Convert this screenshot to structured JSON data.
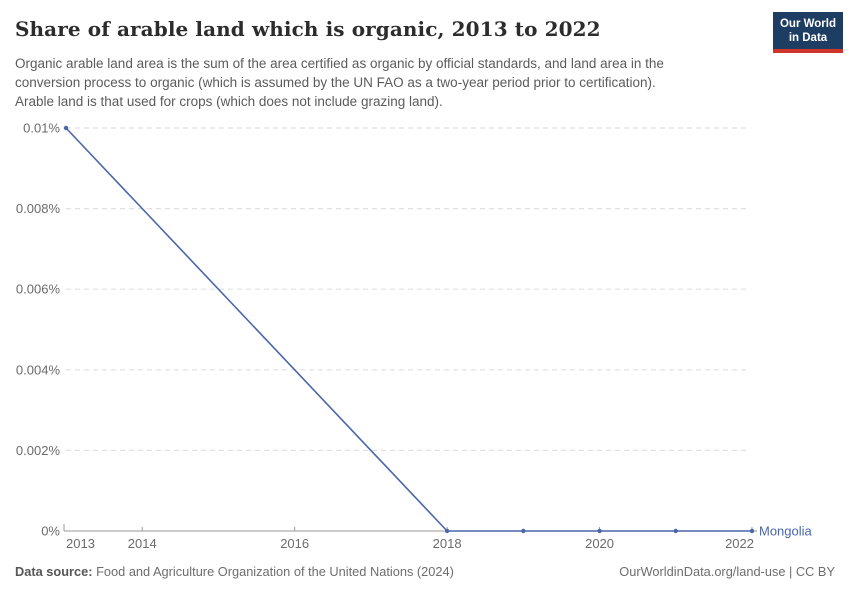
{
  "header": {
    "title": "Share of arable land which is organic, 2013 to 2022",
    "subtitle_lines": [
      "Organic arable land area is the sum of the area certified as organic by official standards, and land area in the",
      "conversion process to organic (which is assumed by the UN FAO as a two-year period prior to certification).",
      "Arable land is that used for crops (which does not include grazing land)."
    ],
    "logo": {
      "line1": "Our World",
      "line2": "in Data",
      "bg_color": "#1d3d63",
      "stripe_color": "#d0352c"
    }
  },
  "chart_data": {
    "type": "line",
    "title": "Share of arable land which is organic, 2013 to 2022",
    "xlabel": "",
    "ylabel": "",
    "xlim": [
      2013,
      2022
    ],
    "ylim": [
      0,
      0.01
    ],
    "xticks": [
      2013,
      2014,
      2016,
      2018,
      2020,
      2022
    ],
    "yticks": [
      {
        "value": 0,
        "label": "0%"
      },
      {
        "value": 0.002,
        "label": "0.002%"
      },
      {
        "value": 0.004,
        "label": "0.004%"
      },
      {
        "value": 0.006,
        "label": "0.006%"
      },
      {
        "value": 0.008,
        "label": "0.008%"
      },
      {
        "value": 0.01,
        "label": "0.01%"
      }
    ],
    "grid": "horizontal-dashed",
    "legend": "entity-label-at-line-end",
    "series": [
      {
        "name": "Mongolia",
        "color": "#4a67a8",
        "points": [
          {
            "x": 2013,
            "y": 0.01
          },
          {
            "x": 2018,
            "y": 0
          },
          {
            "x": 2019,
            "y": 0
          },
          {
            "x": 2020,
            "y": 0
          },
          {
            "x": 2021,
            "y": 0
          },
          {
            "x": 2022,
            "y": 0
          }
        ]
      }
    ],
    "colors": {
      "grid": "#e0e0e0",
      "axis": "#9a9a9a",
      "tick_text": "#6b6b6b"
    }
  },
  "footer": {
    "source_label": "Data source:",
    "source_text": "Food and Agriculture Organization of the United Nations (2024)",
    "right_text": "OurWorldinData.org/land-use | CC BY"
  }
}
